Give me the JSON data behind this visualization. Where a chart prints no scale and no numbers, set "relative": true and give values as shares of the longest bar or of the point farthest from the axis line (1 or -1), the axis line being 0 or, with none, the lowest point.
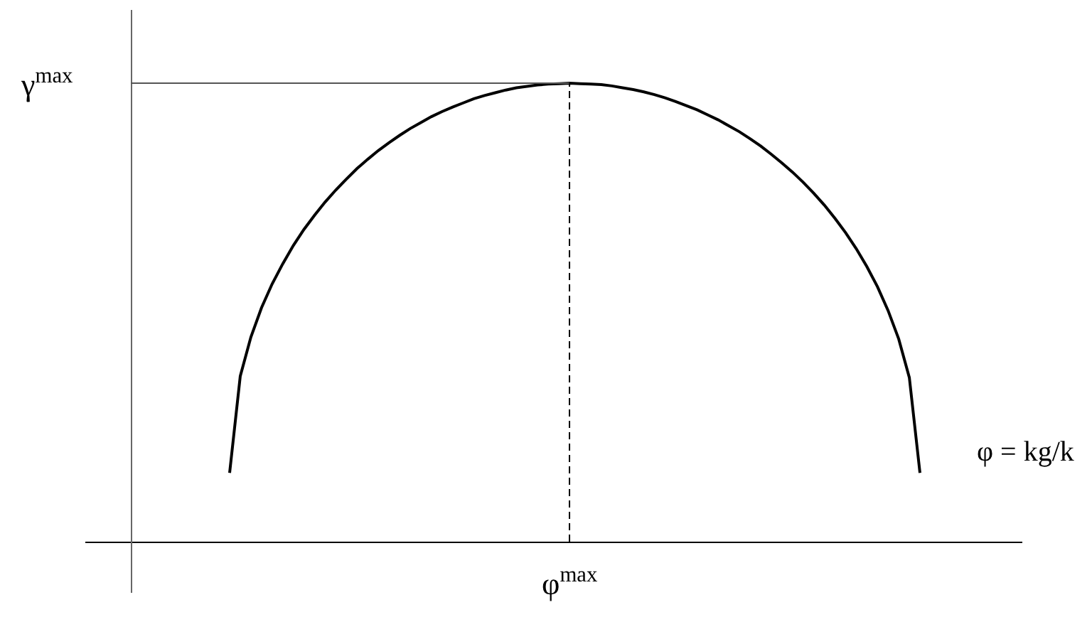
{
  "chart_data": {
    "type": "line",
    "relative": true,
    "xlabel": "φ = kg/k",
    "tick_labels": false,
    "categories": [
      null,
      null,
      null,
      null,
      null,
      null,
      null,
      null,
      null,
      null,
      null,
      null,
      null,
      null,
      null,
      null,
      null,
      null,
      null,
      null,
      null,
      null,
      null,
      null,
      null,
      null,
      null,
      null,
      null,
      null,
      null,
      null,
      null,
      null,
      null,
      null,
      null,
      null,
      null,
      null,
      null,
      null,
      null,
      null,
      null,
      null,
      null,
      null,
      null,
      null,
      null,
      null,
      null,
      null,
      null,
      null,
      null,
      null,
      null,
      null,
      null,
      null,
      null,
      null,
      null,
      null
    ],
    "series": [
      {
        "color": "#000000",
        "values": [
          0.15,
          0.361,
          0.446,
          0.51,
          0.562,
          0.606,
          0.646,
          0.681,
          0.712,
          0.741,
          0.767,
          0.791,
          0.814,
          0.834,
          0.853,
          0.87,
          0.886,
          0.901,
          0.914,
          0.927,
          0.938,
          0.948,
          0.957,
          0.966,
          0.973,
          0.979,
          0.985,
          0.99,
          0.993,
          0.996,
          0.998,
          0.999,
          1,
          0.999,
          0.998,
          0.997,
          0.994,
          0.99,
          0.986,
          0.981,
          0.975,
          0.968,
          0.96,
          0.951,
          0.942,
          0.931,
          0.92,
          0.907,
          0.894,
          0.879,
          0.863,
          0.845,
          0.826,
          0.806,
          0.784,
          0.76,
          0.734,
          0.705,
          0.674,
          0.639,
          0.6,
          0.556,
          0.504,
          0.442,
          0.358,
          0.15
        ]
      }
    ],
    "ref_lines": [
      {
        "axis": "y",
        "value": 1,
        "label": "γ$^{max}$",
        "color": "#555555",
        "line_style": "solid"
      },
      {
        "axis": "x",
        "value": "φ$^{max}$",
        "color": "#000000",
        "line_style": "dashed"
      }
    ]
  }
}
